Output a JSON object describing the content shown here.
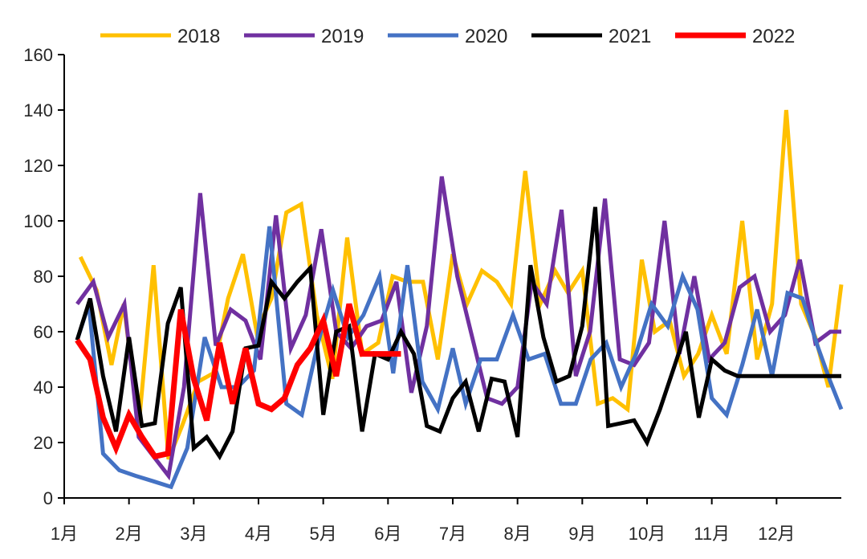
{
  "chart_data": {
    "type": "line",
    "title": "",
    "xlabel": "",
    "ylabel": "",
    "ylim": [
      0,
      160
    ],
    "yticks": [
      0,
      20,
      40,
      60,
      80,
      100,
      120,
      140,
      160
    ],
    "xlim": [
      0,
      12
    ],
    "month_labels": [
      "1月",
      "2月",
      "3月",
      "4月",
      "5月",
      "6月",
      "7月",
      "8月",
      "9月",
      "10月",
      "11月",
      "12月"
    ],
    "grid": false,
    "legend": "top",
    "series": [
      {
        "name": "2018",
        "color": "#FFC000",
        "x": [
          0.25,
          0.5,
          0.73,
          0.92,
          1.15,
          1.38,
          1.61,
          1.82,
          2.07,
          2.3,
          2.53,
          2.76,
          2.97,
          3.2,
          3.43,
          3.66,
          3.9,
          4.14,
          4.37,
          4.6,
          4.85,
          5.07,
          5.3,
          5.54,
          5.77,
          6.0,
          6.22,
          6.45,
          6.68,
          6.9,
          7.12,
          7.35,
          7.58,
          7.78,
          8.0,
          8.24,
          8.47,
          8.7,
          8.92,
          9.12,
          9.35,
          9.57,
          9.79,
          10.0,
          10.23,
          10.47,
          10.7,
          10.93,
          11.15,
          11.38,
          11.6,
          11.8,
          12.0
        ],
        "y": [
          87,
          75,
          48,
          70,
          26,
          84,
          14,
          26,
          42,
          45,
          72,
          88,
          60,
          72,
          103,
          106,
          66,
          43,
          94,
          52,
          56,
          80,
          78,
          78,
          50,
          88,
          70,
          82,
          78,
          70,
          118,
          70,
          82,
          74,
          82,
          34,
          36,
          32,
          86,
          60,
          64,
          44,
          52,
          66,
          52,
          100,
          50,
          70,
          140,
          70,
          58,
          40,
          77
        ]
      },
      {
        "name": "2019",
        "color": "#7030A0",
        "x": [
          0.2,
          0.45,
          0.68,
          0.93,
          1.15,
          1.38,
          1.61,
          1.85,
          2.1,
          2.34,
          2.57,
          2.8,
          3.03,
          3.27,
          3.5,
          3.73,
          3.97,
          4.2,
          4.43,
          4.67,
          4.9,
          5.13,
          5.36,
          5.6,
          5.83,
          6.07,
          6.3,
          6.53,
          6.76,
          7.0,
          7.22,
          7.45,
          7.68,
          7.9,
          8.12,
          8.35,
          8.58,
          8.8,
          9.03,
          9.27,
          9.5,
          9.73,
          9.96,
          10.2,
          10.43,
          10.66,
          10.9,
          11.13,
          11.36,
          11.6,
          11.83,
          12.0
        ],
        "y": [
          70,
          78,
          58,
          70,
          22,
          15,
          8,
          40,
          110,
          55,
          68,
          64,
          50,
          102,
          54,
          66,
          97,
          60,
          54,
          62,
          64,
          78,
          38,
          62,
          116,
          80,
          58,
          36,
          34,
          40,
          78,
          70,
          104,
          44,
          60,
          108,
          50,
          48,
          56,
          100,
          52,
          80,
          50,
          56,
          76,
          80,
          60,
          66,
          86,
          56,
          60,
          60
        ]
      },
      {
        "name": "2020",
        "color": "#4472C4",
        "x": [
          0.2,
          0.38,
          0.6,
          0.85,
          1.1,
          1.38,
          1.65,
          1.9,
          2.17,
          2.43,
          2.68,
          2.93,
          3.17,
          3.43,
          3.67,
          3.92,
          4.15,
          4.38,
          4.62,
          4.87,
          5.08,
          5.3,
          5.53,
          5.77,
          6.0,
          6.2,
          6.43,
          6.68,
          6.93,
          7.17,
          7.42,
          7.67,
          7.9,
          8.13,
          8.37,
          8.6,
          8.83,
          9.07,
          9.32,
          9.55,
          9.78,
          10.0,
          10.23,
          10.47,
          10.7,
          10.93,
          11.17,
          11.4,
          11.63,
          11.83,
          12.0
        ],
        "y": [
          57,
          70,
          16,
          10,
          8,
          6,
          4,
          18,
          58,
          40,
          40,
          46,
          98,
          34,
          30,
          56,
          75,
          58,
          66,
          80,
          45,
          84,
          42,
          32,
          54,
          34,
          50,
          50,
          66,
          50,
          52,
          34,
          34,
          50,
          56,
          40,
          52,
          70,
          62,
          80,
          68,
          36,
          30,
          48,
          68,
          44,
          74,
          72,
          55,
          42,
          32
        ]
      },
      {
        "name": "2021",
        "color": "#000000",
        "x": [
          0.2,
          0.4,
          0.6,
          0.8,
          1.0,
          1.2,
          1.4,
          1.6,
          1.8,
          2.0,
          2.2,
          2.4,
          2.6,
          2.8,
          3.0,
          3.2,
          3.4,
          3.6,
          3.8,
          4.0,
          4.2,
          4.4,
          4.6,
          4.8,
          5.0,
          5.2,
          5.4,
          5.6,
          5.8,
          6.0,
          6.2,
          6.4,
          6.6,
          6.8,
          7.0,
          7.2,
          7.4,
          7.6,
          7.8,
          8.0,
          8.2,
          8.4,
          8.6,
          8.8,
          9.0,
          9.2,
          9.4,
          9.6,
          9.8,
          10.0,
          10.2,
          10.4,
          10.6,
          10.8,
          11.0,
          11.2,
          11.4,
          11.6,
          11.8,
          12.0
        ],
        "y": [
          57,
          72,
          44,
          24,
          58,
          26,
          27,
          63,
          76,
          18,
          22,
          15,
          24,
          54,
          55,
          78,
          72,
          78,
          83,
          30,
          60,
          62,
          24,
          52,
          50,
          60,
          52,
          26,
          24,
          36,
          42,
          24,
          43,
          42,
          22,
          84,
          58,
          42,
          44,
          62,
          105,
          26,
          27,
          28,
          20,
          32,
          46,
          60,
          29,
          50,
          46,
          44,
          44,
          44,
          44,
          44,
          44,
          44,
          44,
          44
        ]
      },
      {
        "name": "2022",
        "color": "#FF0000",
        "x": [
          0.2,
          0.4,
          0.6,
          0.8,
          1.0,
          1.2,
          1.4,
          1.6,
          1.8,
          2.0,
          2.2,
          2.4,
          2.6,
          2.8,
          3.0,
          3.2,
          3.4,
          3.6,
          3.8,
          4.0,
          4.2,
          4.4,
          4.6,
          4.8,
          5.0,
          5.2
        ],
        "y": [
          57,
          50,
          29,
          18,
          30,
          22,
          15,
          16,
          68,
          43,
          28,
          56,
          34,
          54,
          34,
          32,
          36,
          48,
          54,
          64,
          44,
          70,
          52,
          52,
          52,
          52
        ]
      }
    ]
  }
}
